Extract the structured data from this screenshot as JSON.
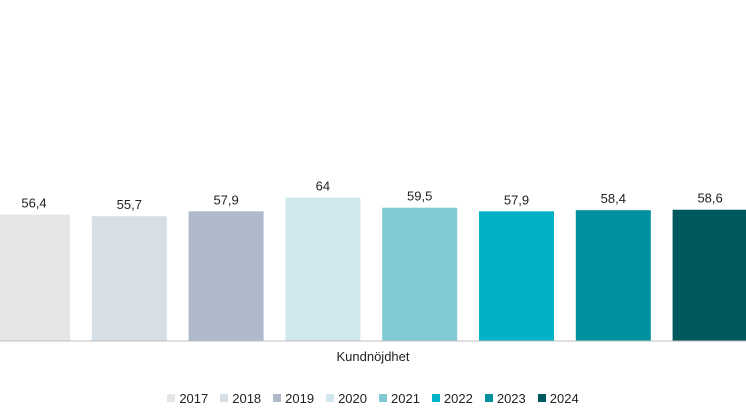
{
  "chart_data": {
    "type": "bar",
    "categories": [
      "Kundnöjdhet"
    ],
    "xlabel": "Kundnöjdhet",
    "ylim": [
      0,
      100
    ],
    "series": [
      {
        "name": "2017",
        "values": [
          56.4
        ],
        "label": "56,4",
        "color": "#e6e6e6"
      },
      {
        "name": "2018",
        "values": [
          55.7
        ],
        "label": "55,7",
        "color": "#d6dee6"
      },
      {
        "name": "2019",
        "values": [
          57.9
        ],
        "label": "57,9",
        "color": "#aebacb"
      },
      {
        "name": "2020",
        "values": [
          64
        ],
        "label": "64",
        "color": "#cfe8ee"
      },
      {
        "name": "2021",
        "values": [
          59.5
        ],
        "label": "59,5",
        "color": "#80cad4"
      },
      {
        "name": "2022",
        "values": [
          57.9
        ],
        "label": "57,9",
        "color": "#00b1c8"
      },
      {
        "name": "2023",
        "values": [
          58.4
        ],
        "label": "58,4",
        "color": "#00919f"
      },
      {
        "name": "2024",
        "values": [
          58.6
        ],
        "label": "58,6",
        "color": "#00585f"
      }
    ],
    "legend_position": "bottom",
    "grid": false
  }
}
